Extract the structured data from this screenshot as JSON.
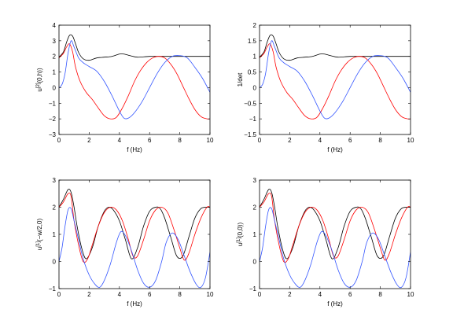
{
  "chart_data": [
    {
      "type": "line",
      "xlabel": "f (Hz)",
      "ylabel_main": "u",
      "ylabel_sup": "[2]",
      "ylabel_rest": "(0,h))",
      "xlim": [
        0,
        10
      ],
      "ylim": [
        -3,
        4
      ],
      "xticks": [
        0,
        2,
        4,
        6,
        8,
        10
      ],
      "yticks": [
        -3,
        -2,
        -1,
        0,
        1,
        2,
        3,
        4
      ],
      "series": [
        {
          "color": "#000000",
          "x": [
            0,
            0.3,
            0.5,
            0.7,
            0.9,
            1.1,
            1.3,
            1.6,
            2.0,
            2.5,
            3.0,
            3.5,
            4.0,
            4.3,
            4.7,
            5.2,
            6.0,
            7.0,
            8.0,
            9.0,
            10.0
          ],
          "y": [
            1.95,
            2.3,
            2.9,
            3.35,
            3.3,
            2.8,
            2.25,
            1.85,
            1.75,
            1.9,
            1.95,
            2.0,
            2.15,
            2.15,
            2.05,
            1.95,
            2.0,
            2.0,
            2.0,
            2.0,
            2.0
          ]
        },
        {
          "color": "#ff0000",
          "x": [
            0,
            0.3,
            0.5,
            0.7,
            0.9,
            1.1,
            1.4,
            1.8,
            2.2,
            2.6,
            3.0,
            3.4,
            3.8,
            4.2,
            4.6,
            5.0,
            5.4,
            5.8,
            6.2,
            6.6,
            7.0,
            7.4,
            7.8,
            8.2,
            8.6,
            9.0,
            9.4,
            9.8,
            10.0
          ],
          "y": [
            1.9,
            2.2,
            2.6,
            2.8,
            2.3,
            1.3,
            0.4,
            -0.3,
            -0.75,
            -1.3,
            -1.8,
            -2.0,
            -1.9,
            -1.3,
            -0.5,
            0.4,
            1.1,
            1.6,
            1.9,
            2.0,
            1.9,
            1.5,
            0.9,
            0.1,
            -0.7,
            -1.4,
            -1.85,
            -2.0,
            -2.0
          ]
        },
        {
          "color": "#3355ff",
          "x": [
            0,
            0.2,
            0.4,
            0.6,
            0.8,
            1.0,
            1.3,
            1.6,
            2.0,
            2.5,
            3.0,
            3.5,
            4.0,
            4.3,
            4.6,
            5.0,
            5.5,
            6.0,
            6.5,
            7.0,
            7.5,
            8.0,
            8.5,
            9.0,
            9.5,
            10.0
          ],
          "y": [
            0.0,
            0.2,
            0.9,
            2.2,
            3.0,
            2.6,
            1.9,
            1.6,
            1.35,
            1.05,
            0.4,
            -0.5,
            -1.5,
            -1.95,
            -1.95,
            -1.6,
            -0.9,
            0.0,
            0.9,
            1.6,
            2.0,
            2.05,
            1.9,
            1.3,
            0.6,
            -0.3
          ]
        }
      ]
    },
    {
      "type": "line",
      "xlabel": "f (Hz)",
      "ylabel_main": "1/det",
      "ylabel_sup": "",
      "ylabel_rest": "",
      "xlim": [
        0,
        10
      ],
      "ylim": [
        -1.5,
        2
      ],
      "xticks": [
        0,
        2,
        4,
        6,
        8,
        10
      ],
      "yticks": [
        -1.5,
        -1,
        -0.5,
        0,
        0.5,
        1,
        1.5,
        2
      ],
      "series": [
        {
          "color": "#000000",
          "x": [
            0,
            0.3,
            0.5,
            0.7,
            0.9,
            1.1,
            1.3,
            1.6,
            2.0,
            2.5,
            3.0,
            3.5,
            4.0,
            4.3,
            4.7,
            5.2,
            6.0,
            7.0,
            8.0,
            9.0,
            10.0
          ],
          "y": [
            0.975,
            1.15,
            1.45,
            1.675,
            1.65,
            1.4,
            1.125,
            0.925,
            0.875,
            0.95,
            0.975,
            1.0,
            1.075,
            1.075,
            1.025,
            0.975,
            1.0,
            1.0,
            1.0,
            1.0,
            1.0
          ]
        },
        {
          "color": "#ff0000",
          "x": [
            0,
            0.3,
            0.5,
            0.7,
            0.9,
            1.1,
            1.4,
            1.8,
            2.2,
            2.6,
            3.0,
            3.4,
            3.8,
            4.2,
            4.6,
            5.0,
            5.4,
            5.8,
            6.2,
            6.6,
            7.0,
            7.4,
            7.8,
            8.2,
            8.6,
            9.0,
            9.4,
            9.8,
            10.0
          ],
          "y": [
            0.95,
            1.1,
            1.3,
            1.4,
            1.15,
            0.65,
            0.2,
            -0.15,
            -0.375,
            -0.65,
            -0.9,
            -1.0,
            -0.95,
            -0.65,
            -0.25,
            0.2,
            0.55,
            0.8,
            0.95,
            1.0,
            0.95,
            0.75,
            0.45,
            0.05,
            -0.35,
            -0.7,
            -0.925,
            -1.0,
            -1.0
          ]
        },
        {
          "color": "#3355ff",
          "x": [
            0,
            0.2,
            0.4,
            0.6,
            0.8,
            1.0,
            1.3,
            1.6,
            2.0,
            2.5,
            3.0,
            3.5,
            4.0,
            4.3,
            4.6,
            5.0,
            5.5,
            6.0,
            6.5,
            7.0,
            7.5,
            8.0,
            8.5,
            9.0,
            9.5,
            10.0
          ],
          "y": [
            0.0,
            0.1,
            0.45,
            1.1,
            1.5,
            1.3,
            0.95,
            0.8,
            0.675,
            0.525,
            0.2,
            -0.25,
            -0.75,
            -0.975,
            -0.975,
            -0.8,
            -0.45,
            0.0,
            0.45,
            0.8,
            1.0,
            1.025,
            0.95,
            0.65,
            0.3,
            -0.15
          ]
        }
      ]
    },
    {
      "type": "line",
      "xlabel": "f (Hz)",
      "ylabel_main": "u",
      "ylabel_sup": "[1]",
      "ylabel_rest": "(−w/2,0)",
      "xlim": [
        0,
        10
      ],
      "ylim": [
        -1,
        3
      ],
      "xticks": [
        0,
        2,
        4,
        6,
        8,
        10
      ],
      "yticks": [
        -1,
        0,
        1,
        2,
        3
      ],
      "series": [
        {
          "color": "#000000",
          "x": [
            0,
            0.3,
            0.6,
            0.8,
            1.0,
            1.2,
            1.5,
            1.8,
            2.2,
            2.6,
            3.0,
            3.3,
            3.6,
            4.0,
            4.4,
            4.8,
            5.2,
            5.6,
            6.0,
            6.4,
            6.7,
            7.0,
            7.4,
            7.8,
            8.2,
            8.6,
            9.0,
            9.4,
            9.8,
            10.0
          ],
          "y": [
            2.0,
            2.3,
            2.65,
            2.55,
            2.0,
            1.3,
            0.5,
            0.1,
            0.5,
            1.3,
            1.85,
            2.0,
            1.9,
            1.5,
            0.8,
            0.1,
            0.5,
            1.3,
            1.85,
            2.0,
            1.95,
            1.6,
            0.9,
            0.2,
            0.2,
            0.9,
            1.6,
            1.95,
            2.0,
            2.0
          ]
        },
        {
          "color": "#ff0000",
          "x": [
            0,
            0.3,
            0.6,
            0.8,
            1.0,
            1.3,
            1.6,
            1.9,
            2.2,
            2.6,
            3.0,
            3.4,
            3.8,
            4.2,
            4.6,
            4.9,
            5.2,
            5.6,
            6.0,
            6.4,
            6.8,
            7.2,
            7.6,
            8.0,
            8.3,
            8.6,
            9.0,
            9.4,
            9.8,
            10.0
          ],
          "y": [
            2.0,
            2.2,
            2.5,
            2.4,
            1.5,
            0.6,
            0.0,
            0.1,
            0.6,
            1.3,
            1.8,
            2.0,
            1.9,
            1.5,
            0.8,
            0.2,
            0.2,
            0.8,
            1.5,
            1.9,
            2.0,
            1.8,
            1.2,
            0.5,
            0.05,
            0.3,
            1.0,
            1.6,
            2.0,
            2.0
          ]
        },
        {
          "color": "#3355ff",
          "x": [
            0,
            0.2,
            0.4,
            0.6,
            0.8,
            1.0,
            1.3,
            1.6,
            2.0,
            2.4,
            2.7,
            3.0,
            3.4,
            3.8,
            4.1,
            4.4,
            4.8,
            5.2,
            5.6,
            6.0,
            6.4,
            6.8,
            7.1,
            7.5,
            7.9,
            8.3,
            8.7,
            9.1,
            9.4,
            9.7,
            10.0
          ],
          "y": [
            0.0,
            0.5,
            1.3,
            1.9,
            1.95,
            1.5,
            0.8,
            0.1,
            -0.5,
            -0.85,
            -0.95,
            -0.7,
            -0.1,
            0.7,
            1.1,
            0.95,
            0.4,
            -0.3,
            -0.8,
            -0.95,
            -0.7,
            0.0,
            0.7,
            1.05,
            0.8,
            0.2,
            -0.4,
            -0.85,
            -0.95,
            -0.6,
            0.35
          ]
        }
      ]
    },
    {
      "type": "line",
      "xlabel": "f (Hz)",
      "ylabel_main": "u",
      "ylabel_sup": "[1]",
      "ylabel_rest": "(0,0))",
      "xlim": [
        0,
        10
      ],
      "ylim": [
        -1,
        3
      ],
      "xticks": [
        0,
        2,
        4,
        6,
        8,
        10
      ],
      "yticks": [
        -1,
        0,
        1,
        2,
        3
      ],
      "series": [
        {
          "color": "#000000",
          "x": [
            0,
            0.3,
            0.6,
            0.8,
            1.0,
            1.2,
            1.5,
            1.8,
            2.2,
            2.6,
            3.0,
            3.3,
            3.6,
            4.0,
            4.4,
            4.8,
            5.2,
            5.6,
            6.0,
            6.4,
            6.7,
            7.0,
            7.4,
            7.8,
            8.2,
            8.6,
            9.0,
            9.4,
            9.8,
            10.0
          ],
          "y": [
            2.0,
            2.3,
            2.65,
            2.55,
            2.0,
            1.3,
            0.5,
            0.1,
            0.5,
            1.3,
            1.85,
            2.0,
            1.9,
            1.5,
            0.8,
            0.1,
            0.5,
            1.3,
            1.85,
            2.0,
            1.95,
            1.6,
            0.9,
            0.2,
            0.2,
            0.9,
            1.6,
            1.95,
            2.0,
            2.0
          ]
        },
        {
          "color": "#ff0000",
          "x": [
            0,
            0.3,
            0.6,
            0.8,
            1.0,
            1.3,
            1.6,
            1.9,
            2.2,
            2.6,
            3.0,
            3.4,
            3.8,
            4.2,
            4.6,
            4.9,
            5.2,
            5.6,
            6.0,
            6.4,
            6.8,
            7.2,
            7.6,
            8.0,
            8.3,
            8.6,
            9.0,
            9.4,
            9.8,
            10.0
          ],
          "y": [
            2.0,
            2.2,
            2.5,
            2.4,
            1.5,
            0.6,
            0.0,
            0.1,
            0.6,
            1.3,
            1.8,
            2.0,
            1.9,
            1.5,
            0.8,
            0.2,
            0.2,
            0.8,
            1.5,
            1.9,
            2.0,
            1.8,
            1.2,
            0.5,
            0.05,
            0.3,
            1.0,
            1.6,
            2.0,
            2.0
          ]
        },
        {
          "color": "#3355ff",
          "x": [
            0,
            0.2,
            0.4,
            0.6,
            0.8,
            1.0,
            1.3,
            1.6,
            2.0,
            2.4,
            2.7,
            3.0,
            3.4,
            3.8,
            4.1,
            4.4,
            4.8,
            5.2,
            5.6,
            6.0,
            6.4,
            6.8,
            7.1,
            7.5,
            7.9,
            8.3,
            8.7,
            9.1,
            9.4,
            9.7,
            10.0
          ],
          "y": [
            0.0,
            0.5,
            1.3,
            1.9,
            1.95,
            1.5,
            0.8,
            0.1,
            -0.5,
            -0.85,
            -0.95,
            -0.7,
            -0.1,
            0.7,
            1.1,
            0.95,
            0.4,
            -0.3,
            -0.8,
            -0.95,
            -0.7,
            0.0,
            0.7,
            1.05,
            0.8,
            0.2,
            -0.4,
            -0.85,
            -0.95,
            -0.6,
            0.35
          ]
        }
      ]
    }
  ]
}
